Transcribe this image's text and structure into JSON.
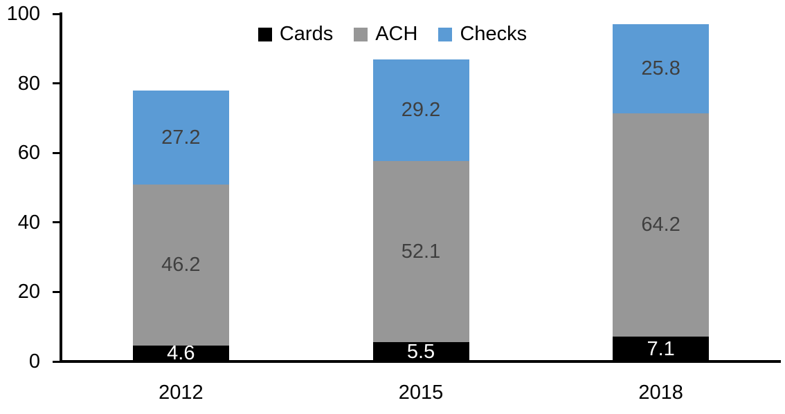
{
  "chart_data": {
    "type": "bar",
    "stacked": true,
    "title": "",
    "xlabel": "",
    "ylabel": "",
    "categories": [
      "2012",
      "2015",
      "2018"
    ],
    "series": [
      {
        "name": "Cards",
        "color": "#000000",
        "label_color": "#ffffff",
        "values": [
          4.6,
          5.5,
          7.1
        ]
      },
      {
        "name": "ACH",
        "color": "#979797",
        "label_color": "#3f3f3f",
        "values": [
          46.2,
          52.1,
          64.2
        ]
      },
      {
        "name": "Checks",
        "color": "#5b9bd5",
        "label_color": "#3f3f3f",
        "values": [
          27.2,
          29.2,
          25.8
        ]
      }
    ],
    "totals": [
      78.0,
      86.8,
      97.1
    ],
    "ylim": [
      0,
      100
    ],
    "y_ticks": [
      0,
      20,
      40,
      60,
      80,
      100
    ],
    "grid": false,
    "legend_position": "top-center",
    "value_label_decimals": 1,
    "axis_color": "#000000",
    "tick_label_color": "#000000",
    "background_color": "#ffffff"
  }
}
